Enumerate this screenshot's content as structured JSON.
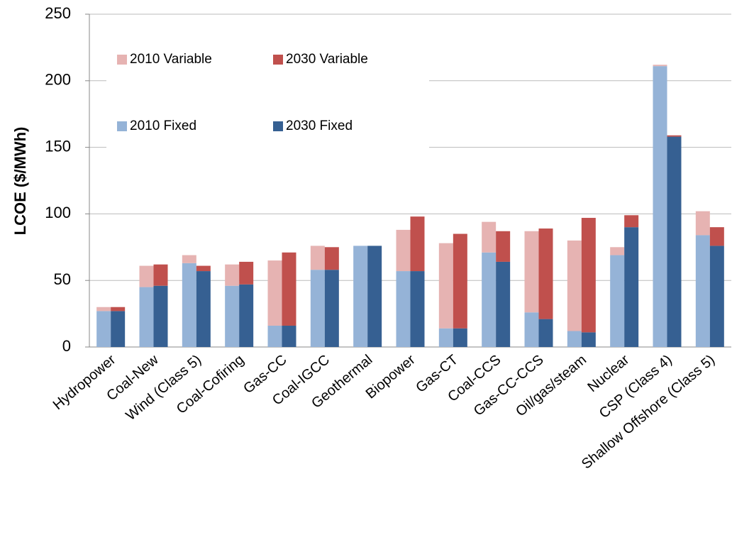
{
  "chart_data": {
    "type": "bar",
    "y_label": "LCOE ($/MWh)",
    "categories": [
      "Hydropower",
      "Coal-New",
      "Wind (Class 5)",
      "Coal-Cofiring",
      "Gas-CC",
      "Coal-IGCC",
      "Geothermal",
      "Biopower",
      "Gas-CT",
      "Coal-CCS",
      "Gas-CC-CCS",
      "Oil/gas/steam",
      "Nuclear",
      "CSP (Class 4)",
      "Shallow Offshore (Class 5)"
    ],
    "series": [
      {
        "name": "2010 Variable",
        "color": "#e6b3b2",
        "values": [
          3,
          16,
          6,
          16,
          49,
          18,
          0,
          31,
          64,
          23,
          61,
          68,
          6,
          1,
          18
        ]
      },
      {
        "name": "2030 Variable",
        "color": "#c0504d",
        "values": [
          3,
          16,
          4,
          17,
          55,
          17,
          0,
          41,
          71,
          23,
          68,
          86,
          9,
          1,
          14
        ]
      },
      {
        "name": "2010 Fixed",
        "color": "#95b3d7",
        "values": [
          27,
          45,
          63,
          46,
          16,
          58,
          76,
          57,
          14,
          71,
          26,
          12,
          69,
          211,
          84
        ]
      },
      {
        "name": "2030 Fixed",
        "color": "#366092",
        "values": [
          27,
          46,
          57,
          47,
          16,
          58,
          76,
          57,
          14,
          64,
          21,
          11,
          90,
          158,
          76
        ]
      }
    ],
    "ylim": [
      0,
      250
    ],
    "yticks": [
      0,
      50,
      100,
      150,
      200,
      250
    ],
    "grid": true
  }
}
